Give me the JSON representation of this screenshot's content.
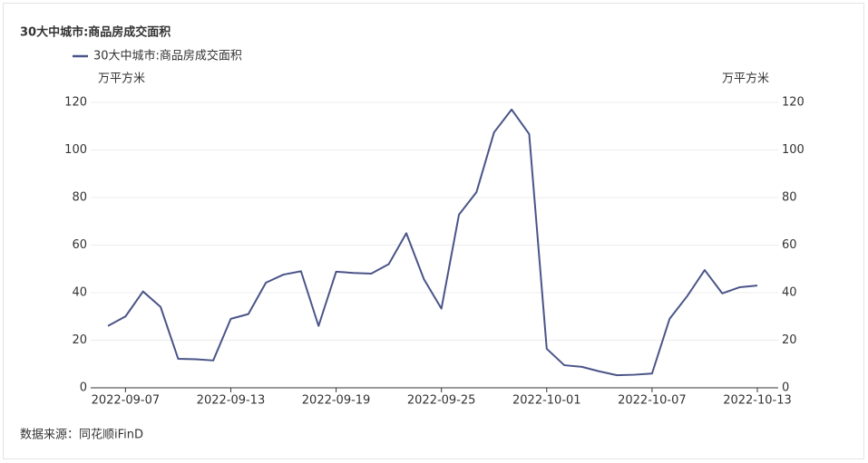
{
  "chart_data": {
    "type": "line",
    "title": "30大中城市:商品房成交面积",
    "y_unit": "万平方米",
    "y2_unit": "万平方米",
    "source": "数据来源：同花顺iFinD",
    "x": [
      "2022-09-06",
      "2022-09-07",
      "2022-09-08",
      "2022-09-09",
      "2022-09-10",
      "2022-09-11",
      "2022-09-12",
      "2022-09-13",
      "2022-09-14",
      "2022-09-15",
      "2022-09-16",
      "2022-09-17",
      "2022-09-18",
      "2022-09-19",
      "2022-09-20",
      "2022-09-21",
      "2022-09-22",
      "2022-09-23",
      "2022-09-24",
      "2022-09-25",
      "2022-09-26",
      "2022-09-27",
      "2022-09-28",
      "2022-09-29",
      "2022-09-30",
      "2022-10-01",
      "2022-10-02",
      "2022-10-03",
      "2022-10-04",
      "2022-10-05",
      "2022-10-06",
      "2022-10-07",
      "2022-10-08",
      "2022-10-09",
      "2022-10-10",
      "2022-10-11",
      "2022-10-12",
      "2022-10-13"
    ],
    "xticks": [
      "2022-09-07",
      "2022-09-13",
      "2022-09-19",
      "2022-09-25",
      "2022-10-01",
      "2022-10-07",
      "2022-10-13"
    ],
    "series": [
      {
        "name": "30大中城市:商品房成交面积",
        "color": "#4a5488",
        "values": [
          26,
          30,
          40.5,
          34,
          12.2,
          12,
          11.5,
          29,
          31,
          44.2,
          47.6,
          49,
          26,
          48.8,
          48.3,
          48,
          52,
          65,
          45.7,
          33.3,
          72.8,
          82.3,
          107.4,
          117,
          106.7,
          16.4,
          9.5,
          8.8,
          6.9,
          5.3,
          5.5,
          6,
          29,
          38.5,
          49.5,
          39.7,
          42.3,
          43
        ]
      }
    ],
    "ylim": [
      0,
      120
    ],
    "yticks": [
      0,
      20,
      40,
      60,
      80,
      100,
      120
    ],
    "y2lim": [
      0,
      120
    ],
    "y2ticks": [
      0,
      20,
      40,
      60,
      80,
      100,
      120
    ],
    "grid": true
  }
}
